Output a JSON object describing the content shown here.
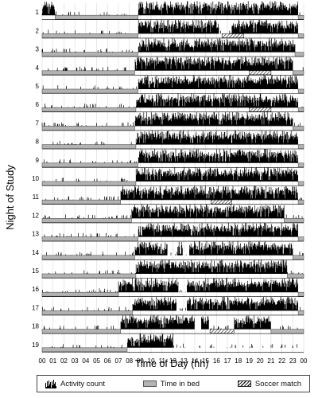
{
  "chart_data": {
    "type": "actogram",
    "ylabel": "Night of Study",
    "xlabel": "Time of Day (hh)",
    "x_ticks": [
      "00",
      "01",
      "02",
      "03",
      "04",
      "05",
      "06",
      "07",
      "08",
      "09",
      "10",
      "11",
      "12",
      "13",
      "14",
      "15",
      "16",
      "17",
      "18",
      "19",
      "20",
      "21",
      "22",
      "23",
      "00"
    ],
    "x_unit": "hours after midnight",
    "xlim": [
      0,
      24
    ],
    "nights": [
      {
        "night": 1,
        "bed": [
          [
            1.2,
            8.8
          ],
          [
            23.5,
            24
          ]
        ],
        "activity": [
          [
            0,
            1.2
          ],
          [
            8.8,
            23.5
          ]
        ],
        "soccer": null
      },
      {
        "night": 2,
        "bed": [
          [
            0,
            8.8
          ],
          [
            23.5,
            24
          ]
        ],
        "activity": [
          [
            8.8,
            16.2
          ],
          [
            17.4,
            23.5
          ]
        ],
        "soccer": [
          16.5,
          18.5
        ]
      },
      {
        "night": 3,
        "bed": [
          [
            0,
            8.8
          ],
          [
            23.2,
            24
          ]
        ],
        "activity": [
          [
            8.8,
            23.2
          ]
        ],
        "soccer": null
      },
      {
        "night": 4,
        "bed": [
          [
            0,
            8.5
          ],
          [
            23.0,
            24
          ]
        ],
        "activity": [
          [
            8.5,
            23.0
          ]
        ],
        "soccer": [
          19.0,
          21.0
        ]
      },
      {
        "night": 5,
        "bed": [
          [
            0,
            8.8
          ],
          [
            23.5,
            24
          ]
        ],
        "activity": [
          [
            8.8,
            23.5
          ]
        ],
        "soccer": null
      },
      {
        "night": 6,
        "bed": [
          [
            0,
            8.6
          ],
          [
            23.5,
            24
          ]
        ],
        "activity": [
          [
            8.6,
            23.5
          ]
        ],
        "soccer": [
          19.0,
          21.0
        ]
      },
      {
        "night": 7,
        "bed": [
          [
            0,
            8.5
          ],
          [
            23.0,
            24
          ]
        ],
        "activity": [
          [
            8.5,
            23.0
          ]
        ],
        "soccer": null
      },
      {
        "night": 8,
        "bed": [
          [
            0,
            8.6
          ],
          [
            23.5,
            24
          ]
        ],
        "activity": [
          [
            8.6,
            23.5
          ]
        ],
        "soccer": null
      },
      {
        "night": 9,
        "bed": [
          [
            0,
            8.8
          ],
          [
            23.5,
            24
          ]
        ],
        "activity": [
          [
            8.8,
            23.5
          ]
        ],
        "soccer": null
      },
      {
        "night": 10,
        "bed": [
          [
            0,
            8.6
          ],
          [
            23.5,
            24
          ]
        ],
        "activity": [
          [
            8.6,
            23.5
          ]
        ],
        "soccer": null
      },
      {
        "night": 11,
        "bed": [
          [
            0,
            7.2
          ],
          [
            23.5,
            24
          ]
        ],
        "activity": [
          [
            7.2,
            23.5
          ]
        ],
        "soccer": [
          15.5,
          17.4
        ]
      },
      {
        "night": 12,
        "bed": [
          [
            0,
            8.2
          ],
          [
            22.2,
            24
          ]
        ],
        "activity": [
          [
            8.2,
            22.2
          ]
        ],
        "soccer": null
      },
      {
        "night": 13,
        "bed": [
          [
            0,
            8.8
          ],
          [
            23.5,
            24
          ]
        ],
        "activity": [
          [
            8.8,
            23.5
          ]
        ],
        "soccer": null
      },
      {
        "night": 14,
        "bed": [
          [
            0,
            8.5
          ],
          [
            23.0,
            24
          ]
        ],
        "activity": [
          [
            8.5,
            11.5
          ],
          [
            12.4,
            12.9
          ],
          [
            13.5,
            23.0
          ]
        ],
        "soccer": null
      },
      {
        "night": 15,
        "bed": [
          [
            0,
            8.6
          ],
          [
            22.5,
            24
          ]
        ],
        "activity": [
          [
            8.6,
            22.5
          ]
        ],
        "soccer": null
      },
      {
        "night": 16,
        "bed": [
          [
            0,
            7.0
          ],
          [
            23.5,
            24
          ]
        ],
        "activity": [
          [
            7.0,
            12.5
          ],
          [
            13.3,
            23.5
          ]
        ],
        "soccer": null
      },
      {
        "night": 17,
        "bed": [
          [
            0,
            8.3
          ],
          [
            23.5,
            24
          ]
        ],
        "activity": [
          [
            8.3,
            12.3
          ],
          [
            13.3,
            23.5
          ]
        ],
        "soccer": null
      },
      {
        "night": 18,
        "bed": [
          [
            0,
            7.2
          ],
          [
            21.0,
            24
          ]
        ],
        "activity": [
          [
            7.2,
            14.0
          ],
          [
            14.6,
            15.3
          ],
          [
            17.6,
            21.0
          ]
        ],
        "soccer": [
          15.4,
          17.6
        ]
      },
      {
        "night": 19,
        "bed": [
          [
            0,
            7.8
          ]
        ],
        "activity": [
          [
            7.8,
            12.0
          ]
        ],
        "soccer": null
      }
    ],
    "legend": [
      {
        "key": "activity",
        "label": "Activity count"
      },
      {
        "key": "bed",
        "label": "Time in bed"
      },
      {
        "key": "soccer",
        "label": "Soccer match"
      }
    ],
    "legend_position": "bottom",
    "grid": true,
    "colors": {
      "activity": "#000000",
      "bed": "#b3b3b3",
      "bed_border": "#555555",
      "soccer_hatch": "#222222",
      "grid": "#d9d9d9"
    }
  }
}
